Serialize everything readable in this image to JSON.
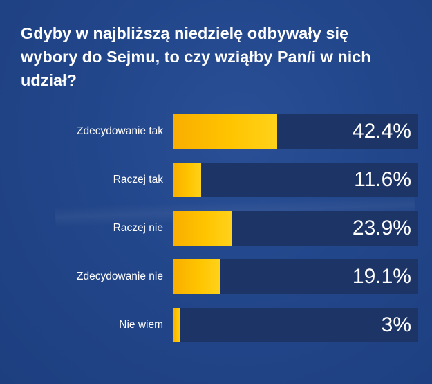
{
  "chart_data": {
    "type": "bar",
    "orientation": "horizontal",
    "title": "Gdyby w najbliższą niedzielę odbywały się wybory do Sejmu, to czy wziąłby Pan/i w nich udział?",
    "categories": [
      "Zdecydowanie tak",
      "Raczej tak",
      "Raczej nie",
      "Zdecydowanie nie",
      "Nie wiem"
    ],
    "values": [
      42.4,
      11.6,
      23.9,
      19.1,
      3
    ],
    "value_labels": [
      "42.4%",
      "11.6%",
      "23.9%",
      "19.1%",
      "3%"
    ],
    "xlim": [
      0,
      100
    ],
    "unit": "%",
    "grid": false,
    "legend": "none"
  },
  "colors": {
    "background": "#22468a",
    "track": "#1c3466",
    "bar": "#ffc400"
  }
}
